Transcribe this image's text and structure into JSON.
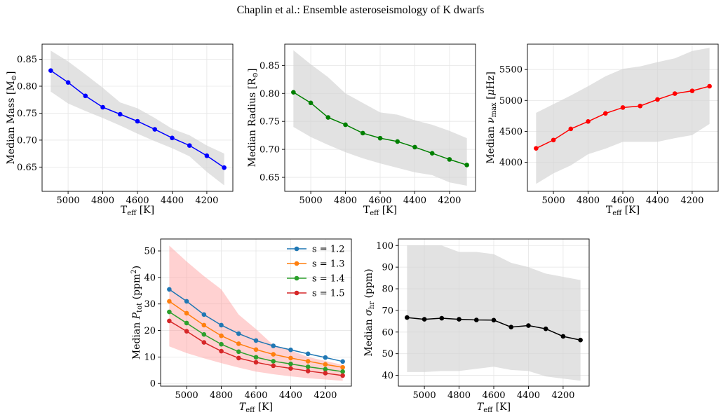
{
  "figure_title": "Chaplin et al.: Ensemble asteroseismology of K dwarfs",
  "colors": {
    "band": "#d3d3d3",
    "band_red": "#ff9999",
    "blue": "#0000ff",
    "green": "#008000",
    "red": "#ff0000",
    "black": "#000000",
    "tab_blue": "#1f77b4",
    "tab_orange": "#ff7f0e",
    "tab_green": "#2ca02c",
    "tab_red": "#d62728"
  },
  "chart_data": [
    {
      "type": "line",
      "xlabel": "T_eff [K]",
      "ylabel": "Median Mass [M_⊙]",
      "xlim": [
        5150,
        4050
      ],
      "ylim": [
        0.605,
        0.878
      ],
      "xticks": [
        5000,
        4800,
        4600,
        4400,
        4200
      ],
      "xtick_labels": [
        "5000",
        "4800",
        "4600",
        "4400",
        "4200"
      ],
      "yticks": [
        0.65,
        0.7,
        0.75,
        0.8,
        0.85
      ],
      "ytick_labels": [
        "0.65",
        "0.70",
        "0.75",
        "0.80",
        "0.85"
      ],
      "grid": true,
      "x": [
        5100,
        5000,
        4900,
        4800,
        4700,
        4600,
        4500,
        4400,
        4300,
        4200,
        4100
      ],
      "band": {
        "upper": [
          0.866,
          0.846,
          0.822,
          0.797,
          0.77,
          0.759,
          0.741,
          0.721,
          0.709,
          0.69,
          0.675
        ],
        "lower": [
          0.79,
          0.768,
          0.754,
          0.741,
          0.727,
          0.712,
          0.698,
          0.685,
          0.67,
          0.641,
          0.616
        ]
      },
      "series": [
        {
          "values": [
            0.829,
            0.807,
            0.782,
            0.761,
            0.748,
            0.735,
            0.72,
            0.704,
            0.69,
            0.671,
            0.649
          ],
          "color_key": "blue"
        }
      ]
    },
    {
      "type": "line",
      "xlabel": "T_eff [K]",
      "ylabel": "Median Radius [R_⊙]",
      "xlim": [
        5150,
        4050
      ],
      "ylim": [
        0.625,
        0.888
      ],
      "xticks": [
        5000,
        4800,
        4600,
        4400,
        4200
      ],
      "xtick_labels": [
        "5000",
        "4800",
        "4600",
        "4400",
        "4200"
      ],
      "yticks": [
        0.65,
        0.7,
        0.75,
        0.8,
        0.85
      ],
      "ytick_labels": [
        "0.65",
        "0.70",
        "0.75",
        "0.80",
        "0.85"
      ],
      "grid": true,
      "x": [
        5100,
        5000,
        4900,
        4800,
        4700,
        4600,
        4500,
        4400,
        4300,
        4200,
        4100
      ],
      "band": {
        "upper": [
          0.877,
          0.852,
          0.829,
          0.8,
          0.783,
          0.766,
          0.762,
          0.752,
          0.744,
          0.733,
          0.72
        ],
        "lower": [
          0.74,
          0.722,
          0.708,
          0.695,
          0.684,
          0.675,
          0.667,
          0.659,
          0.654,
          0.641,
          0.635
        ]
      },
      "series": [
        {
          "values": [
            0.802,
            0.783,
            0.757,
            0.744,
            0.729,
            0.72,
            0.714,
            0.704,
            0.693,
            0.682,
            0.672
          ],
          "color_key": "green"
        }
      ]
    },
    {
      "type": "line",
      "xlabel": "T_eff [K]",
      "ylabel": "Median ν_max [μHz]",
      "xlim": [
        5150,
        4050
      ],
      "ylim": [
        3530,
        5910
      ],
      "xticks": [
        5000,
        4800,
        4600,
        4400,
        4200
      ],
      "xtick_labels": [
        "5000",
        "4800",
        "4600",
        "4400",
        "4200"
      ],
      "yticks": [
        4000,
        4500,
        5000,
        5500
      ],
      "ytick_labels": [
        "4000",
        "4500",
        "5000",
        "5500"
      ],
      "grid": true,
      "x": [
        5100,
        5000,
        4900,
        4800,
        4700,
        4600,
        4500,
        4400,
        4300,
        4200,
        4100
      ],
      "band": {
        "upper": [
          4800,
          4940,
          5080,
          5230,
          5390,
          5510,
          5550,
          5620,
          5680,
          5800,
          5850
        ],
        "lower": [
          3650,
          3820,
          3950,
          4130,
          4220,
          4330,
          4330,
          4330,
          4390,
          4440,
          4620
        ]
      },
      "series": [
        {
          "values": [
            4225,
            4360,
            4540,
            4660,
            4790,
            4885,
            4910,
            5015,
            5110,
            5155,
            5230
          ],
          "color_key": "red"
        }
      ]
    },
    {
      "type": "line",
      "xlabel": "T_eff [K]",
      "ylabel": "Median P_tot (ppm²)",
      "xlim": [
        5150,
        4050
      ],
      "ylim": [
        -1,
        54.5
      ],
      "xticks": [
        5000,
        4800,
        4600,
        4400,
        4200
      ],
      "xtick_labels": [
        "5000",
        "4800",
        "4600",
        "4400",
        "4200"
      ],
      "yticks": [
        0,
        10,
        20,
        30,
        40,
        50
      ],
      "ytick_labels": [
        "0",
        "10",
        "20",
        "30",
        "40",
        "50"
      ],
      "grid": true,
      "legend": "top-right",
      "x": [
        5100,
        5000,
        4900,
        4800,
        4700,
        4600,
        4500,
        4400,
        4300,
        4200,
        4100
      ],
      "band": {
        "upper": [
          52,
          46,
          40.5,
          35.5,
          26,
          20.5,
          14.5,
          12.5,
          10,
          8.5,
          7
        ],
        "lower": [
          14,
          11.5,
          9.5,
          7.7,
          6,
          4.5,
          3.5,
          2.7,
          2,
          1.5,
          1
        ]
      },
      "series": [
        {
          "name": "s = 1.2",
          "values": [
            35.5,
            31,
            26,
            22,
            18.8,
            16.2,
            14.2,
            12.7,
            11.2,
            9.8,
            8.3
          ],
          "color_key": "tab_blue"
        },
        {
          "name": "s = 1.3",
          "values": [
            31,
            26.5,
            22,
            18,
            15,
            12.8,
            11,
            9.6,
            8.4,
            7.2,
            6.1
          ],
          "color_key": "tab_orange"
        },
        {
          "name": "s = 1.4",
          "values": [
            27,
            22.8,
            18.5,
            14.8,
            12,
            9.9,
            8.4,
            7.4,
            6.3,
            5.4,
            4.5
          ],
          "color_key": "tab_green"
        },
        {
          "name": "s = 1.5",
          "values": [
            23.6,
            19.7,
            15.5,
            12.2,
            9.6,
            8,
            6.7,
            5.7,
            4.7,
            3.9,
            3
          ]
        }
      ]
    },
    {
      "type": "line",
      "xlabel": "T_eff [K]",
      "ylabel": "Median σ_hr (ppm)",
      "xlim": [
        5150,
        4050
      ],
      "ylim": [
        35,
        103
      ],
      "xticks": [
        5000,
        4800,
        4600,
        4400,
        4200
      ],
      "xtick_labels": [
        "5000",
        "4800",
        "4600",
        "4400",
        "4200"
      ],
      "yticks": [
        40,
        50,
        60,
        70,
        80,
        90,
        100
      ],
      "ytick_labels": [
        "40",
        "50",
        "60",
        "70",
        "80",
        "90",
        "100"
      ],
      "grid": true,
      "x": [
        5100,
        5000,
        4900,
        4800,
        4700,
        4600,
        4500,
        4400,
        4300,
        4200,
        4100
      ],
      "band": {
        "upper": [
          100,
          100,
          100,
          97,
          97,
          96,
          92,
          90,
          87,
          85.5,
          84
        ],
        "lower": [
          41.5,
          41.5,
          42,
          42,
          43,
          44,
          42.5,
          42,
          39.5,
          38.5,
          37.5
        ]
      },
      "series": [
        {
          "values": [
            66.7,
            65.9,
            66.4,
            65.9,
            65.6,
            65.5,
            62.3,
            63,
            61.5,
            58,
            56.3
          ],
          "color_key": "black"
        }
      ]
    }
  ]
}
